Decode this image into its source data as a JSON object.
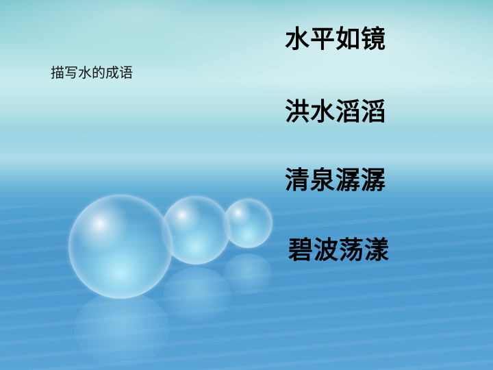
{
  "slide": {
    "heading": "描写水的成语",
    "idioms": [
      "水平如镜",
      "洪水滔滔",
      "清泉潺潺",
      "碧波荡漾"
    ]
  },
  "colors": {
    "text": "#000000",
    "background_top": "#7fc8d0",
    "background_bottom": "#4a97cc"
  }
}
